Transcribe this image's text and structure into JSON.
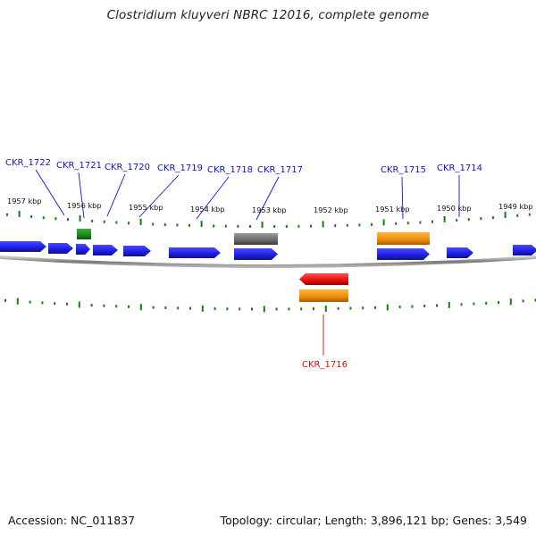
{
  "title": "Clostridium kluyveri NBRC 12016, complete genome",
  "accession": "Accession: NC_011837",
  "summary": "Topology: circular; Length: 3,896,121 bp; Genes: 3,549",
  "colors": {
    "cds": "#1f1fe6",
    "rrna_green": "#1f8a1f",
    "trna_gray": "#6e6e6e",
    "orange": "#f0900a",
    "red": "#ee1111",
    "label_blue": "#1515a8",
    "label_red": "#cc1111",
    "tick_green": "#1a7a1a",
    "backbone": "#8a8a8a"
  },
  "scale_ticks": [
    {
      "label": "1957 kbp"
    },
    {
      "label": "1956 kbp"
    },
    {
      "label": "1955 kbp"
    },
    {
      "label": "1954 kbp"
    },
    {
      "label": "1953 kbp"
    },
    {
      "label": "1952 kbp"
    },
    {
      "label": "1951 kbp"
    },
    {
      "label": "1950 kbp"
    },
    {
      "label": "1949 kbp"
    }
  ],
  "gene_labels": [
    {
      "name": "CKR_1722"
    },
    {
      "name": "CKR_1721"
    },
    {
      "name": "CKR_1720"
    },
    {
      "name": "CKR_1719"
    },
    {
      "name": "CKR_1718"
    },
    {
      "name": "CKR_1717"
    },
    {
      "name": "CKR_1715"
    },
    {
      "name": "CKR_1714"
    },
    {
      "name": "CKR_1716"
    }
  ]
}
